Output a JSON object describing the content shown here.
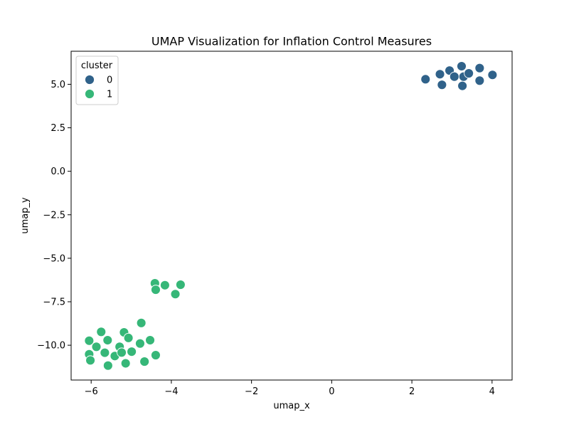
{
  "chart_data": {
    "type": "scatter",
    "title": "UMAP Visualization for Inflation Control Measures",
    "xlabel": "umap_x",
    "ylabel": "umap_y",
    "xlim": [
      -6.5,
      4.5
    ],
    "ylim": [
      -12.0,
      6.9
    ],
    "xticks": [
      -6,
      -4,
      -2,
      0,
      2,
      4
    ],
    "yticks": [
      -10.0,
      -7.5,
      -5.0,
      -2.5,
      0.0,
      2.5,
      5.0
    ],
    "xtick_labels": [
      "−6",
      "−4",
      "−2",
      "0",
      "2",
      "4"
    ],
    "ytick_labels": [
      "−10.0",
      "−7.5",
      "−5.0",
      "−2.5",
      "0.0",
      "2.5",
      "5.0"
    ],
    "grid": false,
    "legend": {
      "title": "cluster",
      "placement": "top-left"
    },
    "series": [
      {
        "name": "0",
        "color": "#30628a",
        "points": [
          [
            2.34,
            5.29
          ],
          [
            2.7,
            5.58
          ],
          [
            2.75,
            4.97
          ],
          [
            2.94,
            5.79
          ],
          [
            3.06,
            5.44
          ],
          [
            3.24,
            6.04
          ],
          [
            3.26,
            4.91
          ],
          [
            3.29,
            5.44
          ],
          [
            3.42,
            5.63
          ],
          [
            3.69,
            5.93
          ],
          [
            3.69,
            5.21
          ],
          [
            4.01,
            5.54
          ]
        ]
      },
      {
        "name": "1",
        "color": "#36b778",
        "points": [
          [
            -6.05,
            -9.74
          ],
          [
            -6.05,
            -10.52
          ],
          [
            -6.02,
            -10.87
          ],
          [
            -5.87,
            -10.09
          ],
          [
            -5.75,
            -9.23
          ],
          [
            -5.66,
            -10.43
          ],
          [
            -5.59,
            -9.71
          ],
          [
            -5.58,
            -11.17
          ],
          [
            -5.41,
            -10.62
          ],
          [
            -5.29,
            -10.09
          ],
          [
            -5.24,
            -10.42
          ],
          [
            -5.18,
            -9.26
          ],
          [
            -5.14,
            -11.04
          ],
          [
            -5.07,
            -9.58
          ],
          [
            -4.99,
            -10.37
          ],
          [
            -4.78,
            -9.9
          ],
          [
            -4.75,
            -8.72
          ],
          [
            -4.67,
            -10.94
          ],
          [
            -4.53,
            -9.71
          ],
          [
            -4.39,
            -10.57
          ],
          [
            -4.41,
            -6.44
          ],
          [
            -4.39,
            -6.81
          ],
          [
            -4.16,
            -6.55
          ],
          [
            -3.9,
            -7.06
          ],
          [
            -3.77,
            -6.52
          ]
        ]
      }
    ]
  }
}
